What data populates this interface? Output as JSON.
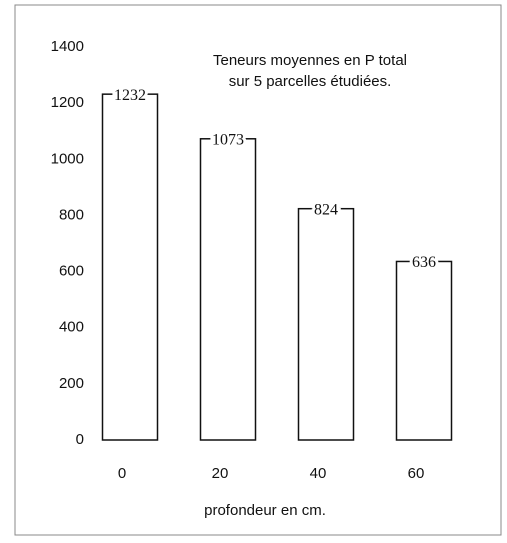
{
  "chart_data": {
    "type": "bar",
    "title": [
      "Teneurs moyennes en P total",
      "sur 5 parcelles étudiées."
    ],
    "x_label": "profondeur en cm.",
    "categories": [
      "0",
      "20",
      "40",
      "60"
    ],
    "values": [
      1232,
      1073,
      824,
      636
    ],
    "color": "#ffffff",
    "ylim": [
      0,
      1400
    ],
    "yticks": [
      0,
      200,
      400,
      600,
      800,
      1000,
      1200,
      1400
    ]
  }
}
